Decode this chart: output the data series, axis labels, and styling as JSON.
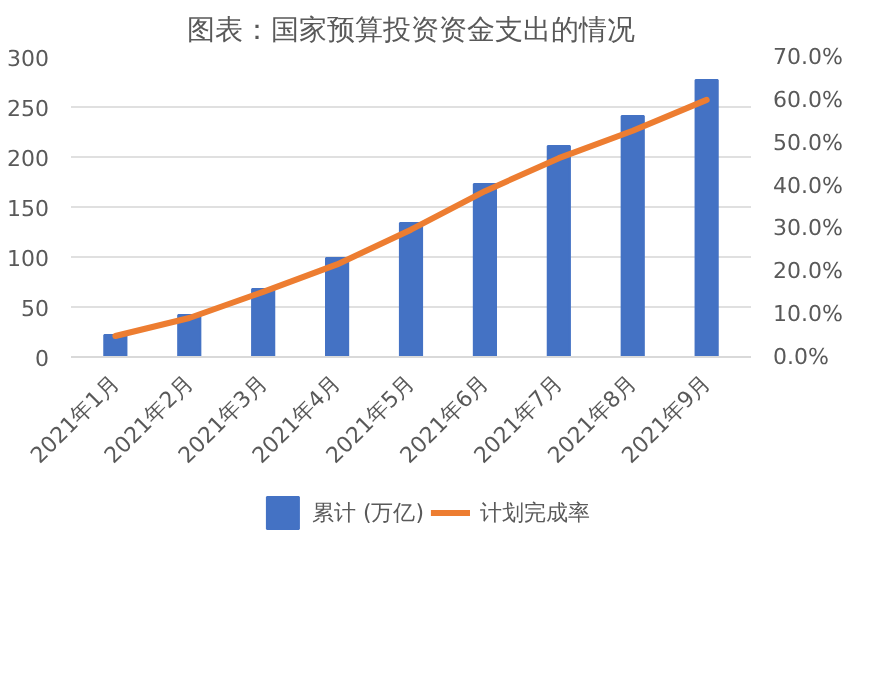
{
  "chart_data": {
    "type": "bar",
    "title": "图表：国家预算投资资金支出的情况",
    "categories": [
      "2021年1月",
      "2021年2月",
      "2021年3月",
      "2021年4月",
      "2021年5月",
      "2021年6月",
      "2021年7月",
      "2021年8月",
      "2021年9月"
    ],
    "series": [
      {
        "name": "累计 (万亿)",
        "color": "#4472c4",
        "values": [
          22,
          42,
          68,
          99,
          134,
          173,
          211,
          241,
          277
        ]
      },
      {
        "name": "计划完成率",
        "type": "line",
        "axis": "y2",
        "color": "#ed7d31",
        "values": [
          4.9,
          9.1,
          15.2,
          21.6,
          29.7,
          38.7,
          46.4,
          52.8,
          60.0
        ]
      }
    ],
    "ylim": [
      0,
      300
    ],
    "yticks": [
      0,
      50,
      100,
      150,
      200,
      250,
      300
    ],
    "y2lim": [
      0,
      70
    ],
    "y2ticks": [
      {
        "value": 0,
        "label": "0.0%"
      },
      {
        "value": 10,
        "label": "10.0%"
      },
      {
        "value": 20,
        "label": "20.0%"
      },
      {
        "value": 30,
        "label": "30.0%"
      },
      {
        "value": 40,
        "label": "40.0%"
      },
      {
        "value": 50,
        "label": "50.0%"
      },
      {
        "value": 60,
        "label": "60.0%"
      },
      {
        "value": 70,
        "label": "70.0%"
      }
    ],
    "grid": "y",
    "legend": "bottom"
  }
}
